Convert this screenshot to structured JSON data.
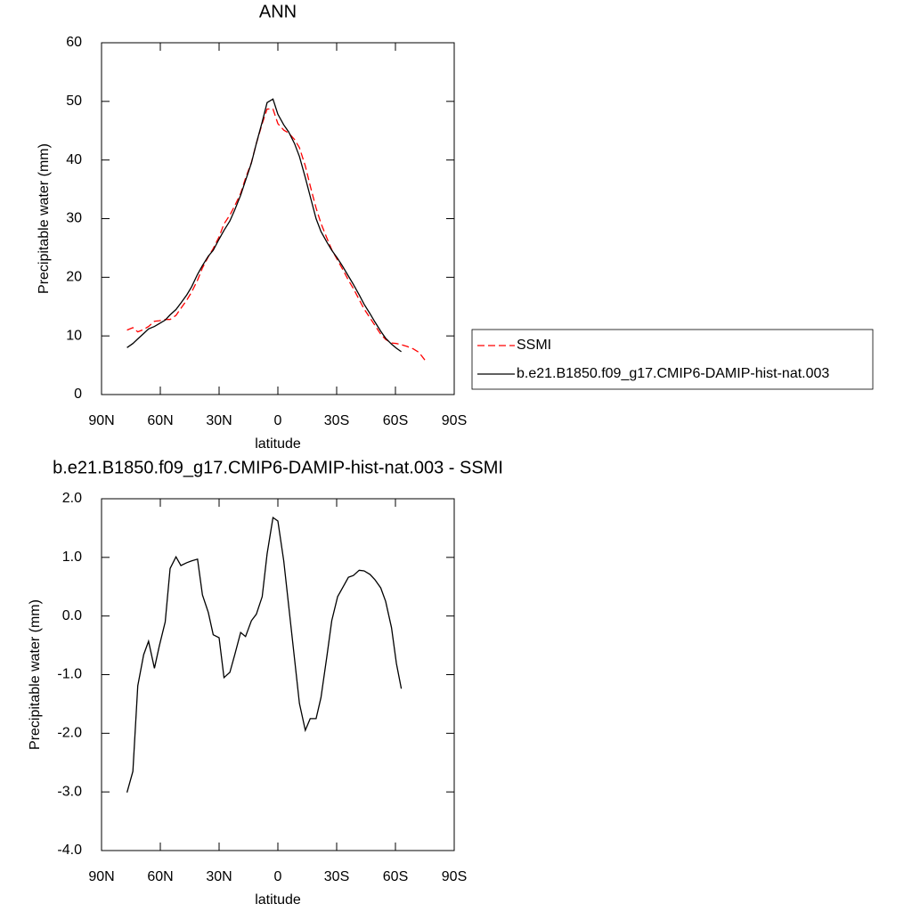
{
  "chart_data": [
    {
      "type": "line",
      "title": "ANN",
      "xlabel": "latitude",
      "ylabel": "Precipitable water (mm)",
      "xlim": [
        90,
        -90
      ],
      "xticks": [
        {
          "value": 90,
          "label": "90N"
        },
        {
          "value": 60,
          "label": "60N"
        },
        {
          "value": 30,
          "label": "30N"
        },
        0,
        {
          "value": -30,
          "label": "30S"
        },
        {
          "value": -60,
          "label": "60S"
        },
        {
          "value": -90,
          "label": "90S"
        }
      ],
      "ylim": [
        0,
        60
      ],
      "yticks": [
        0,
        10,
        20,
        30,
        40,
        50,
        60
      ],
      "legend": "right",
      "series": [
        {
          "name": "SSMI",
          "color": "#ff0000",
          "style": "dashed",
          "x": [
            77,
            74,
            71.5,
            68.5,
            66,
            63,
            60.5,
            57.5,
            55,
            52,
            49.5,
            46.5,
            44,
            41,
            38.5,
            35.5,
            33,
            30,
            27.5,
            24.5,
            22,
            19,
            16.5,
            13.5,
            11,
            8,
            5.5,
            2.5,
            0,
            -3,
            -5.5,
            -8.5,
            -11,
            -14,
            -16.5,
            -19.5,
            -22,
            -25,
            -27.5,
            -30.5,
            -33,
            -36,
            -38.5,
            -41.5,
            -44,
            -47,
            -49.5,
            -52.5,
            -55,
            -58,
            -60.5,
            -63,
            -66,
            -69,
            -72,
            -75
          ],
          "values": [
            11.0,
            11.4,
            10.7,
            11.1,
            11.6,
            12.5,
            12.6,
            12.8,
            12.8,
            13.5,
            14.7,
            16.1,
            17.5,
            19.5,
            21.6,
            23.5,
            24.9,
            26.9,
            29.1,
            30.6,
            32.2,
            34.3,
            36.9,
            39.6,
            42.8,
            46.2,
            48.7,
            48.7,
            46.2,
            45.1,
            44.6,
            43.5,
            42.1,
            39.0,
            35.6,
            31.8,
            29.2,
            26.7,
            24.7,
            22.9,
            21.4,
            19.5,
            18.1,
            16.2,
            14.6,
            13.1,
            11.8,
            10.3,
            9.4,
            8.8,
            8.7,
            8.5,
            8.2,
            7.8,
            7.2,
            5.9
          ]
        },
        {
          "name": "b.e21.B1850.f09_g17.CMIP6-DAMIP-hist-nat.003",
          "color": "#000000",
          "style": "solid",
          "x": [
            77,
            74,
            71.5,
            68.5,
            66,
            63,
            60.5,
            57.5,
            55,
            52,
            49.5,
            46.5,
            44,
            41,
            38.5,
            35.5,
            33,
            30,
            27.5,
            24.5,
            22,
            19,
            16.5,
            13.5,
            11,
            8,
            5.5,
            2.5,
            0,
            -3,
            -5.5,
            -8.5,
            -11,
            -14,
            -16.5,
            -19.5,
            -22,
            -25,
            -27.5,
            -30.5,
            -33,
            -36,
            -38.5,
            -41.5,
            -44,
            -47,
            -49.5,
            -52.5,
            -55,
            -58,
            -60.5,
            -63
          ],
          "values": [
            8.0,
            8.7,
            9.5,
            10.4,
            11.2,
            11.6,
            12.1,
            12.7,
            13.6,
            14.5,
            15.6,
            17.0,
            18.4,
            20.5,
            22.0,
            23.6,
            24.6,
            26.5,
            28.0,
            29.6,
            31.5,
            34.0,
            36.5,
            39.5,
            42.8,
            46.5,
            49.8,
            50.4,
            47.8,
            46.0,
            44.8,
            42.8,
            40.6,
            37.0,
            33.8,
            30.0,
            27.8,
            26.0,
            24.6,
            23.2,
            21.9,
            20.2,
            18.8,
            17.0,
            15.4,
            13.8,
            12.4,
            10.8,
            9.6,
            8.6,
            7.9,
            7.3
          ]
        }
      ]
    },
    {
      "type": "line",
      "title": "b.e21.B1850.f09_g17.CMIP6-DAMIP-hist-nat.003 - SSMI",
      "xlabel": "latitude",
      "ylabel": "Precipitable water (mm)",
      "xlim": [
        90,
        -90
      ],
      "xticks": [
        {
          "value": 90,
          "label": "90N"
        },
        {
          "value": 60,
          "label": "60N"
        },
        {
          "value": 30,
          "label": "30N"
        },
        0,
        {
          "value": -30,
          "label": "30S"
        },
        {
          "value": -60,
          "label": "60S"
        },
        {
          "value": -90,
          "label": "90S"
        }
      ],
      "ylim": [
        -4,
        2
      ],
      "yticks": [
        {
          "value": -4,
          "label": "-4.0"
        },
        {
          "value": -3,
          "label": "-3.0"
        },
        {
          "value": -2,
          "label": "-2.0"
        },
        {
          "value": -1,
          "label": "-1.0"
        },
        {
          "value": 0,
          "label": "0.0"
        },
        {
          "value": 1,
          "label": "1.0"
        },
        {
          "value": 2,
          "label": "2.0"
        }
      ],
      "color": "#000000",
      "x": [
        77,
        74,
        71.5,
        68.5,
        66,
        63,
        60.5,
        57.5,
        55,
        52,
        49.5,
        46.5,
        44,
        41,
        38.5,
        35.5,
        33,
        30,
        27.5,
        24.5,
        22,
        19,
        16.5,
        13.5,
        11,
        8,
        5.5,
        2.5,
        0,
        -3,
        -5.5,
        -8.5,
        -11,
        -14,
        -16.5,
        -19.5,
        -22,
        -25,
        -27.5,
        -30.5,
        -33,
        -36,
        -38.5,
        -41.5,
        -44,
        -47,
        -49.5,
        -52.5,
        -55,
        -58,
        -60.5,
        -63
      ],
      "values": [
        -3.01,
        -2.65,
        -1.19,
        -0.66,
        -0.43,
        -0.89,
        -0.51,
        -0.1,
        0.81,
        1.01,
        0.86,
        0.91,
        0.94,
        0.97,
        0.36,
        0.06,
        -0.32,
        -0.37,
        -1.05,
        -0.96,
        -0.66,
        -0.28,
        -0.35,
        -0.08,
        0.03,
        0.33,
        1.06,
        1.68,
        1.62,
        0.94,
        0.18,
        -0.73,
        -1.49,
        -1.95,
        -1.75,
        -1.75,
        -1.39,
        -0.69,
        -0.08,
        0.33,
        0.48,
        0.66,
        0.69,
        0.78,
        0.77,
        0.71,
        0.62,
        0.48,
        0.25,
        -0.2,
        -0.81,
        -1.24
      ]
    }
  ]
}
